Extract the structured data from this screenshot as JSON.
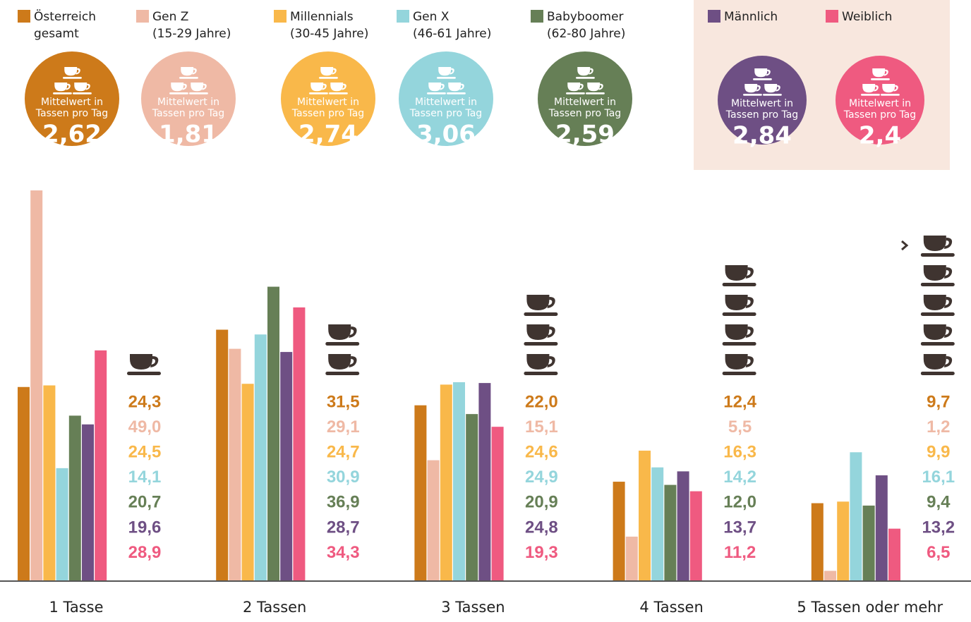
{
  "chart_data": {
    "type": "bar",
    "mean_text": [
      "Mittelwert in",
      "Tassen pro Tag"
    ],
    "categories": [
      "1 Tasse",
      "2 Tassen",
      "3 Tassen",
      "4 Tassen",
      "5 Tassen oder mehr"
    ],
    "ylim": [
      0,
      49
    ],
    "series": [
      {
        "name": "Österreich",
        "sublabel": "gesamt",
        "color": "#cd7a1a",
        "mean": 2.62,
        "mean_label": "2,62",
        "values": [
          24.3,
          31.5,
          22.0,
          12.4,
          9.7
        ],
        "value_labels": [
          "24,3",
          "31,5",
          "22,0",
          "12,4",
          "9,7"
        ]
      },
      {
        "name": "Gen Z",
        "sublabel": "(15-29 Jahre)",
        "color": "#efb9a5",
        "mean": 1.81,
        "mean_label": "1,81",
        "values": [
          49.0,
          29.1,
          15.1,
          5.5,
          1.2
        ],
        "value_labels": [
          "49,0",
          "29,1",
          "15,1",
          "5,5",
          "1,2"
        ]
      },
      {
        "name": "Millennials",
        "sublabel": "(30-45 Jahre)",
        "color": "#f9b84a",
        "mean": 2.74,
        "mean_label": "2,74",
        "values": [
          24.5,
          24.7,
          24.6,
          16.3,
          9.9
        ],
        "value_labels": [
          "24,5",
          "24,7",
          "24,6",
          "16,3",
          "9,9"
        ]
      },
      {
        "name": "Gen X",
        "sublabel": "(46-61 Jahre)",
        "color": "#94d5dc",
        "mean": 3.06,
        "mean_label": "3,06",
        "values": [
          14.1,
          30.9,
          24.9,
          14.2,
          16.1
        ],
        "value_labels": [
          "14,1",
          "30,9",
          "24,9",
          "14,2",
          "16,1"
        ]
      },
      {
        "name": "Babyboomer",
        "sublabel": "(62-80 Jahre)",
        "color": "#667f56",
        "mean": 2.59,
        "mean_label": "2,59",
        "values": [
          20.7,
          36.9,
          20.9,
          12.0,
          9.4
        ],
        "value_labels": [
          "20,7",
          "36,9",
          "20,9",
          "12,0",
          "9,4"
        ]
      },
      {
        "name": "Männlich",
        "color": "#6e4f84",
        "mean": 2.84,
        "mean_label": "2,84",
        "values": [
          19.6,
          28.7,
          24.8,
          13.7,
          13.2
        ],
        "value_labels": [
          "19,6",
          "28,7",
          "24,8",
          "13,7",
          "13,2"
        ]
      },
      {
        "name": "Weiblich",
        "color": "#ef5a80",
        "mean": 2.4,
        "mean_label": "2,4",
        "values": [
          28.9,
          34.3,
          19.3,
          11.2,
          6.5
        ],
        "value_labels": [
          "28,9",
          "34,3",
          "19,3",
          "11,2",
          "6,5"
        ]
      }
    ]
  }
}
